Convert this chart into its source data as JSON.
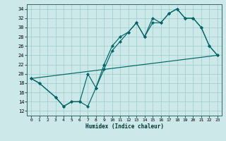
{
  "xlabel": "Humidex (Indice chaleur)",
  "bg_color": "#cce8e8",
  "grid_color": "#99cccc",
  "line_color": "#006666",
  "xlim": [
    -0.5,
    23.5
  ],
  "ylim": [
    11.0,
    35.0
  ],
  "xticks": [
    0,
    1,
    2,
    3,
    4,
    5,
    6,
    7,
    8,
    9,
    10,
    11,
    12,
    13,
    14,
    15,
    16,
    17,
    18,
    19,
    20,
    21,
    22,
    23
  ],
  "yticks": [
    12,
    14,
    16,
    18,
    20,
    22,
    24,
    26,
    28,
    30,
    32,
    34
  ],
  "curve1_x": [
    0,
    1,
    3,
    4,
    5,
    6,
    7,
    8,
    9,
    10,
    11,
    12,
    13,
    14,
    15,
    16,
    17,
    18,
    19,
    20,
    21,
    22,
    23
  ],
  "curve1_y": [
    19,
    18,
    15,
    13,
    14,
    14,
    20,
    17,
    22,
    26,
    28,
    29,
    31,
    28,
    32,
    31,
    33,
    34,
    32,
    32,
    30,
    26,
    24
  ],
  "curve2_x": [
    0,
    1,
    3,
    4,
    5,
    6,
    7,
    8,
    9,
    10,
    11,
    12,
    13,
    14,
    15,
    16,
    17,
    18,
    19,
    20,
    21,
    22,
    23
  ],
  "curve2_y": [
    19,
    18,
    15,
    13,
    14,
    14,
    13,
    17,
    21,
    25,
    27,
    29,
    31,
    28,
    31,
    31,
    33,
    34,
    32,
    32,
    30,
    26,
    24
  ],
  "line3_x": [
    0,
    23
  ],
  "line3_y": [
    19,
    24
  ],
  "tick_labelsize": 5,
  "xlabel_fontsize": 5.5
}
